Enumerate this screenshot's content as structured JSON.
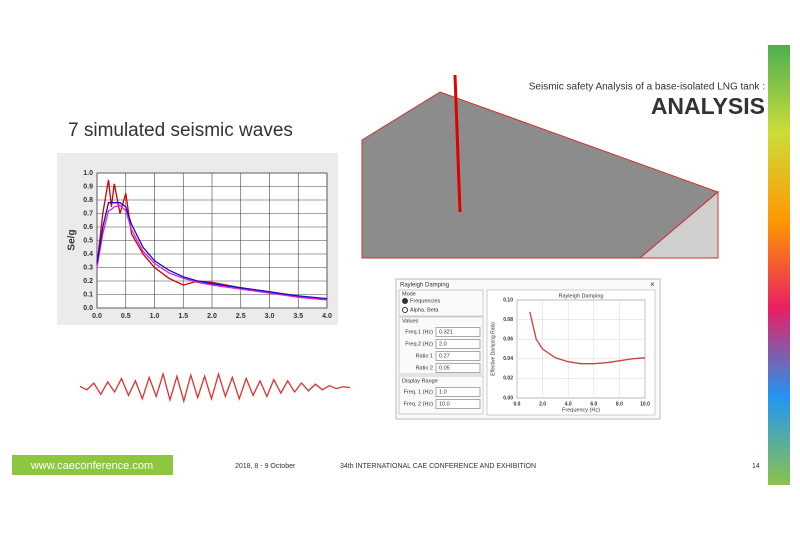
{
  "header": {
    "subtitle": "Seismic safety Analysis of a base-isolated LNG tank :",
    "title": "ANALYSIS"
  },
  "section_title": "7 simulated seismic waves",
  "spectrum_chart": {
    "type": "line",
    "ylabel": "Se/g",
    "xlim": [
      0,
      4
    ],
    "ylim": [
      0,
      1
    ],
    "xticks": [
      {
        "value": 0,
        "label": "0.0"
      },
      0.5,
      {
        "value": 1,
        "label": "1.0"
      },
      1.5,
      {
        "value": 2,
        "label": "2.0"
      },
      2.5,
      {
        "value": 3,
        "label": "3.0"
      },
      3.5,
      {
        "value": 4,
        "label": "4.0"
      }
    ],
    "yticks": [
      {
        "value": 0,
        "label": "0.0"
      },
      0.1,
      0.2,
      0.3,
      0.4,
      0.5,
      0.6,
      0.7,
      0.8,
      0.9,
      {
        "value": 1,
        "label": "1.0"
      }
    ],
    "x": [
      0,
      0.1,
      0.2,
      0.25,
      0.3,
      0.4,
      0.5,
      0.6,
      0.8,
      1.0,
      1.25,
      1.5,
      1.75,
      2.0,
      2.5,
      3.0,
      3.5,
      4.0
    ],
    "series": [
      {
        "color": "#d00000",
        "values": [
          0.32,
          0.7,
          0.95,
          0.75,
          0.92,
          0.7,
          0.85,
          0.55,
          0.4,
          0.3,
          0.22,
          0.17,
          0.2,
          0.19,
          0.15,
          0.12,
          0.08,
          0.06
        ]
      },
      {
        "color": "#e020e0",
        "values": [
          0.3,
          0.55,
          0.72,
          0.73,
          0.75,
          0.76,
          0.72,
          0.58,
          0.42,
          0.33,
          0.26,
          0.22,
          0.19,
          0.17,
          0.14,
          0.11,
          0.08,
          0.06
        ]
      },
      {
        "color": "#1010c0",
        "values": [
          0.33,
          0.6,
          0.78,
          0.78,
          0.78,
          0.78,
          0.75,
          0.62,
          0.45,
          0.35,
          0.28,
          0.23,
          0.2,
          0.18,
          0.15,
          0.12,
          0.09,
          0.07
        ]
      }
    ]
  },
  "time_history": {
    "type": "line",
    "color": "#e03030",
    "ylim": [
      -1,
      1
    ],
    "values": [
      0.05,
      -0.1,
      0.2,
      -0.3,
      0.25,
      -0.2,
      0.4,
      -0.35,
      0.3,
      -0.5,
      0.45,
      -0.4,
      0.6,
      -0.55,
      0.5,
      -0.6,
      0.55,
      -0.45,
      0.5,
      -0.5,
      0.6,
      -0.4,
      0.45,
      -0.5,
      0.4,
      -0.35,
      0.3,
      -0.4,
      0.35,
      -0.25,
      0.3,
      -0.2,
      0.2,
      -0.15,
      0.15,
      -0.1,
      0.08,
      -0.05,
      0.03,
      0
    ]
  },
  "dialog": {
    "title": "Rayleigh Damping",
    "close": "×",
    "mode": {
      "label": "Mode",
      "options": [
        "Frequencies",
        "Alpha, Beta"
      ]
    },
    "values": {
      "label": "Values",
      "rows": [
        {
          "label": "Freq.1 (Hz)",
          "value": "0.321"
        },
        {
          "label": "Freq.2 (Hz)",
          "value": "2.0"
        },
        {
          "label": "Ratio 1",
          "value": "0.27"
        },
        {
          "label": "Ratio 2",
          "value": "0.05"
        }
      ]
    },
    "display_range": {
      "label": "Display Range",
      "rows": [
        {
          "label": "Freq. 1 (Hz)",
          "value": "1.0"
        },
        {
          "label": "Freq. 2 (Hz)",
          "value": "10.0"
        }
      ]
    },
    "chart": {
      "type": "line",
      "title": "Rayleigh Damping",
      "xlabel": "Frequency (Hz)",
      "ylabel": "Effective Damping Ratio",
      "xlim": [
        0,
        10
      ],
      "ylim": [
        0,
        0.1
      ],
      "xticks": [
        {
          "value": 0,
          "label": "0.0"
        },
        {
          "value": 2,
          "label": "2.0"
        },
        {
          "value": 4,
          "label": "4.0"
        },
        {
          "value": 6,
          "label": "6.0"
        },
        {
          "value": 8,
          "label": "8.0"
        },
        {
          "value": 10,
          "label": "10.0"
        }
      ],
      "yticks": [
        {
          "value": 0,
          "label": "0.00"
        },
        {
          "value": 0.02,
          "label": "0.02"
        },
        {
          "value": 0.04,
          "label": "0.04"
        },
        {
          "value": 0.06,
          "label": "0.06"
        },
        {
          "value": 0.08,
          "label": "0.08"
        },
        {
          "value": 0.1,
          "label": "0.10"
        }
      ],
      "x": [
        1,
        1.5,
        2,
        3,
        4,
        5,
        6,
        7,
        8,
        9,
        10
      ],
      "series": [
        {
          "color": "#d04040",
          "values": [
            0.088,
            0.06,
            0.05,
            0.041,
            0.037,
            0.035,
            0.035,
            0.036,
            0.038,
            0.04,
            0.041
          ]
        }
      ]
    }
  },
  "footer": {
    "website": "www.caeconference.com",
    "date": "2018, 8 - 9 October",
    "conference": "34th INTERNATIONAL CAE CONFERENCE AND EXHIBITION",
    "page": "14"
  }
}
